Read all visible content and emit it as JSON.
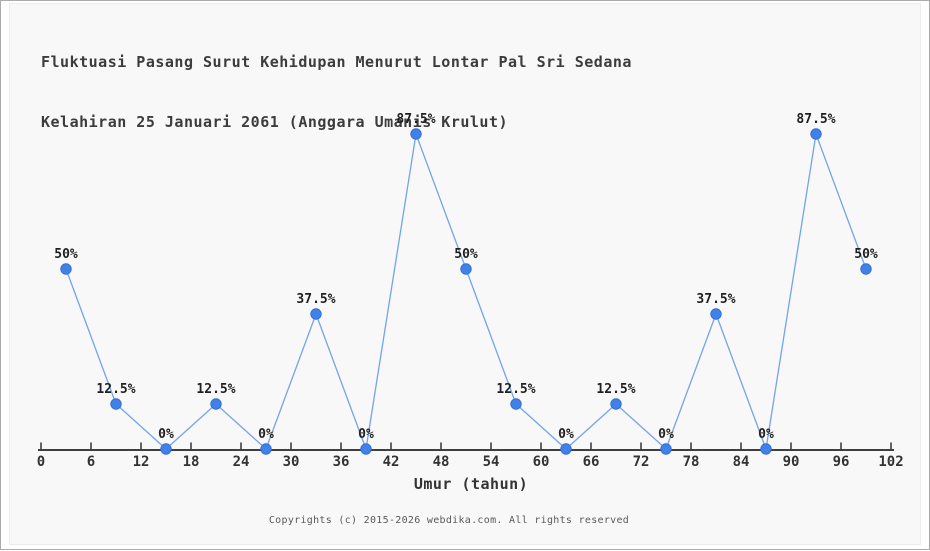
{
  "header": {
    "title_line1": "Fluktuasi Pasang Surut Kehidupan Menurut Lontar Pal Sri Sedana",
    "title_line2": "Kelahiran 25 Januari 2061 (Anggara Umanis Krulut)"
  },
  "footer": {
    "copyright": "Copyrights (c) 2015-2026 webdika.com. All rights reserved"
  },
  "chart_data": {
    "type": "line",
    "title": "Fluktuasi Pasang Surut Kehidupan Menurut Lontar Pal Sri Sedana Kelahiran 25 Januari 2061 (Anggara Umanis Krulut)",
    "xlabel": "Umur (tahun)",
    "ylabel": "",
    "x": [
      3,
      9,
      15,
      21,
      27,
      33,
      39,
      45,
      51,
      57,
      63,
      69,
      75,
      81,
      87,
      93,
      99
    ],
    "y": [
      50,
      12.5,
      0,
      12.5,
      0,
      37.5,
      0,
      87.5,
      50,
      12.5,
      0,
      12.5,
      0,
      37.5,
      0,
      87.5,
      50
    ],
    "point_labels": [
      "50%",
      "12.5%",
      "0%",
      "12.5%",
      "0%",
      "37.5%",
      "0%",
      "87.5%",
      "50%",
      "12.5%",
      "0%",
      "12.5%",
      "0%",
      "37.5%",
      "0%",
      "87.5%",
      "50%"
    ],
    "x_ticks": [
      0,
      6,
      12,
      18,
      24,
      30,
      36,
      42,
      48,
      54,
      60,
      66,
      72,
      78,
      84,
      90,
      96,
      102
    ],
    "xlim": [
      0,
      102
    ],
    "ylim": [
      0,
      100
    ],
    "grid": false,
    "legend": null,
    "colors": {
      "line": "#74a3ea",
      "marker_fill": "#4281e8",
      "marker_edge": "#2e6fd8",
      "axis": "#3f3f3f",
      "tick_label": "#333333",
      "point_label": "#1f1f1f",
      "panel_background": "#f8f8f8"
    }
  }
}
